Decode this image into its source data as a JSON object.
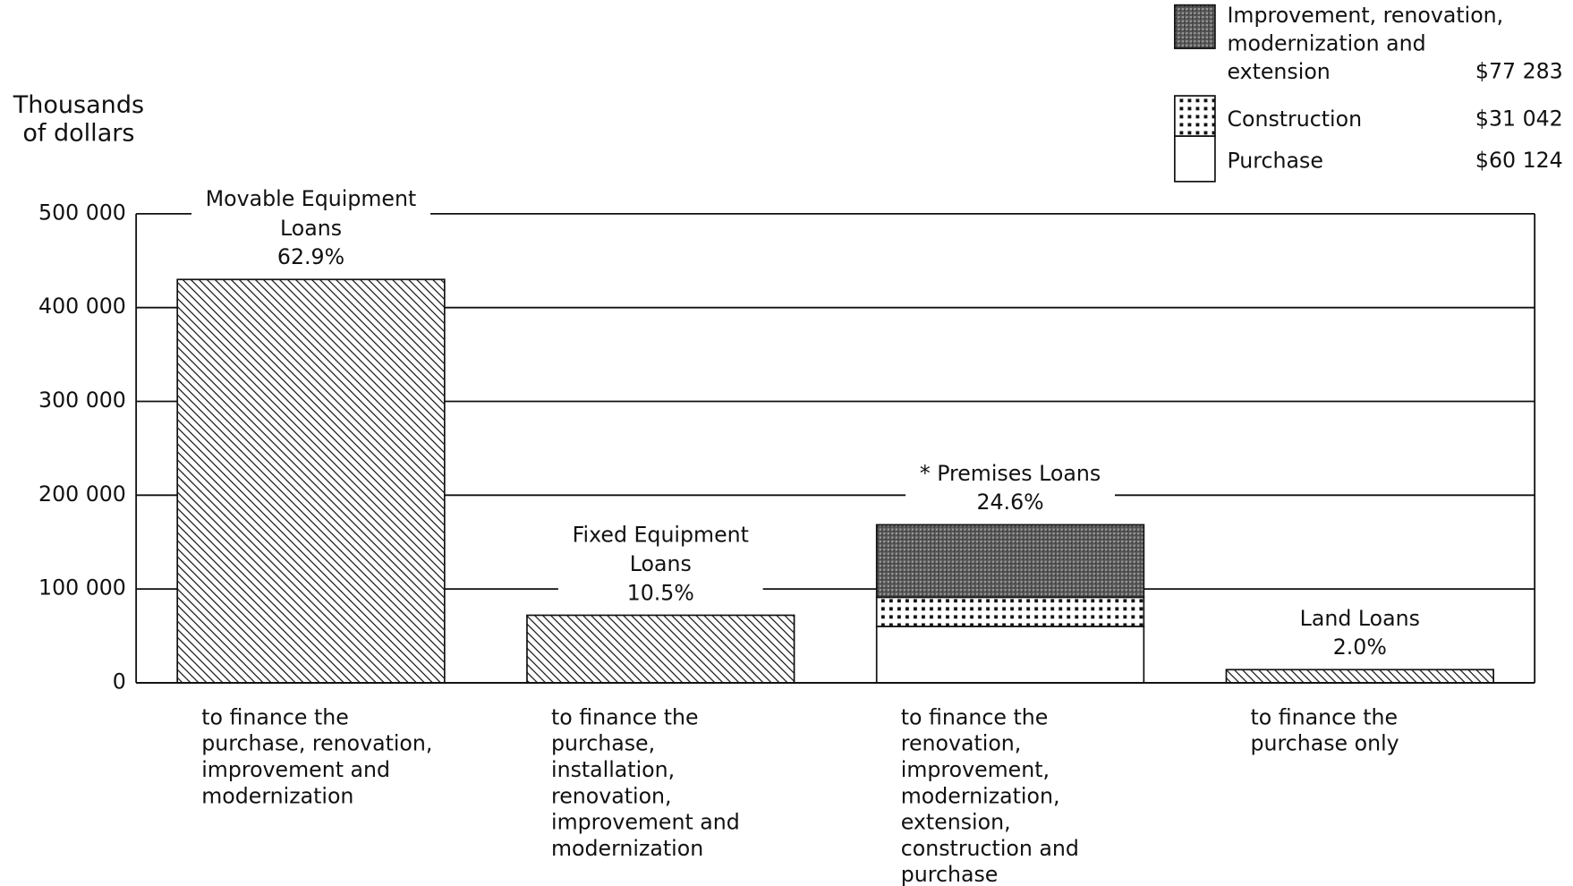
{
  "chart_data": {
    "type": "stacked_bar",
    "y_label": [
      "Thousands",
      "of dollars"
    ],
    "categories": [
      "Movable Equipment Loans",
      "Fixed Equipment Loans",
      "* Premises Loans",
      "Land Loans"
    ],
    "shares": [
      62.9,
      10.5,
      24.6,
      2.0
    ],
    "share_labels": [
      "62.9%",
      "10.5%",
      "24.6%",
      "2.0%"
    ],
    "descriptions": [
      "to finance the purchase, renovation, improvement and modernization",
      "to finance the purchase, installation, renovation, improvement and modernization",
      "to finance the renovation, improvement, modernization, extension, construction and purchase",
      "to finance the purchase only"
    ],
    "values": [
      430000,
      72000,
      null,
      14000
    ],
    "pattern": "hatch",
    "series": [
      {
        "name": "Improvement, renovation, modernization and extension",
        "pattern": "dark",
        "values": [
          null,
          null,
          77283,
          null
        ],
        "value_labels": [
          null,
          null,
          "$77 283",
          null
        ]
      },
      {
        "name": "Construction",
        "pattern": "dots",
        "values": [
          null,
          null,
          31042,
          null
        ],
        "value_labels": [
          null,
          null,
          "$31 042",
          null
        ]
      },
      {
        "name": "Purchase",
        "pattern": "none",
        "values": [
          null,
          null,
          60124,
          null
        ],
        "value_labels": [
          null,
          null,
          "$60 124",
          null
        ]
      }
    ],
    "ylim": [
      0,
      500000
    ],
    "yticks": [
      0,
      {
        "value": 100000,
        "label": "100 000"
      },
      {
        "value": 200000,
        "label": "200 000"
      },
      {
        "value": 300000,
        "label": "300 000"
      },
      {
        "value": 400000,
        "label": "400 000"
      },
      {
        "value": 500000,
        "label": "500 000"
      }
    ],
    "grid": true
  }
}
